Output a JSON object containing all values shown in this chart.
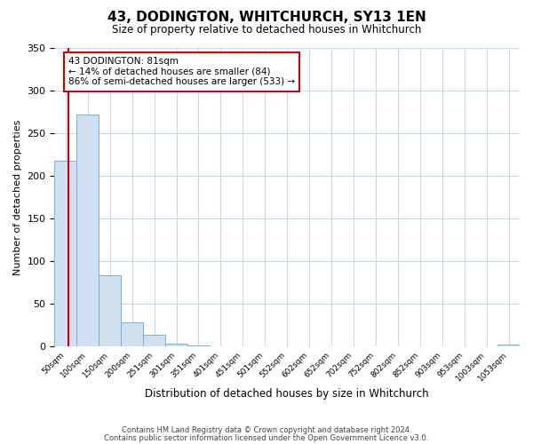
{
  "title": "43, DODINGTON, WHITCHURCH, SY13 1EN",
  "subtitle": "Size of property relative to detached houses in Whitchurch",
  "xlabel": "Distribution of detached houses by size in Whitchurch",
  "ylabel": "Number of detached properties",
  "bar_color": "#cfe0f0",
  "bar_edge_color": "#7ab0d4",
  "bin_labels": [
    "50sqm",
    "100sqm",
    "150sqm",
    "200sqm",
    "251sqm",
    "301sqm",
    "351sqm",
    "401sqm",
    "451sqm",
    "501sqm",
    "552sqm",
    "602sqm",
    "652sqm",
    "702sqm",
    "752sqm",
    "802sqm",
    "852sqm",
    "903sqm",
    "953sqm",
    "1003sqm",
    "1053sqm"
  ],
  "bar_heights": [
    218,
    272,
    84,
    29,
    14,
    4,
    1,
    0,
    0,
    0,
    0,
    0,
    0,
    0,
    0,
    0,
    0,
    0,
    0,
    0,
    3
  ],
  "ylim": [
    0,
    350
  ],
  "yticks": [
    0,
    50,
    100,
    150,
    200,
    250,
    300,
    350
  ],
  "marker_color": "#cc0000",
  "annotation_title": "43 DODINGTON: 81sqm",
  "annotation_line1": "← 14% of detached houses are smaller (84)",
  "annotation_line2": "86% of semi-detached houses are larger (533) →",
  "annotation_box_color": "#ffffff",
  "annotation_box_edge": "#cc0000",
  "footer1": "Contains HM Land Registry data © Crown copyright and database right 2024.",
  "footer2": "Contains public sector information licensed under the Open Government Licence v3.0.",
  "background_color": "#ffffff",
  "grid_color": "#c5d9ea"
}
